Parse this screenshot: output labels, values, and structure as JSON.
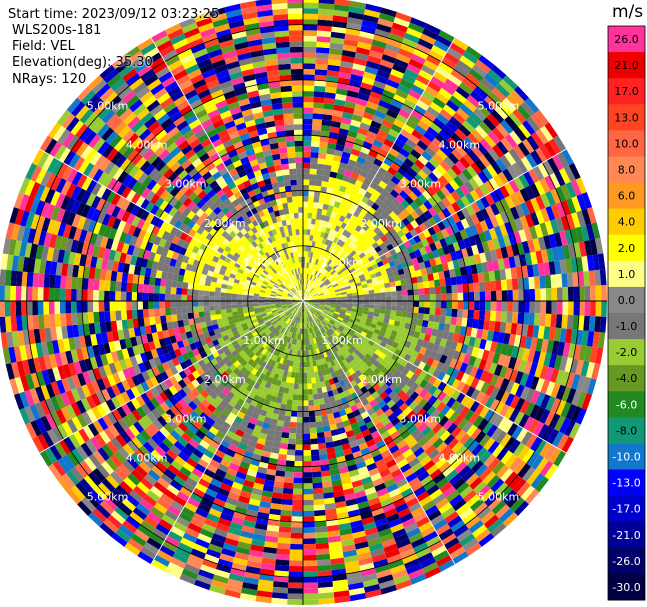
{
  "header": {
    "start_time": "Start time: 2023/09/12 03:23:25",
    "instrument": "WLS200s-181",
    "field": "Field: VEL",
    "elevation": "Elevation(deg): 35.30",
    "nrays": "NRays: 120"
  },
  "colorbar": {
    "unit": "m/s",
    "entries": [
      {
        "label": "26.0",
        "color": "#ff3399"
      },
      {
        "label": "21.0",
        "color": "#ee0000"
      },
      {
        "label": "17.0",
        "color": "#ff2222"
      },
      {
        "label": "13.0",
        "color": "#ff4422"
      },
      {
        "label": "10.0",
        "color": "#ff6644"
      },
      {
        "label": "8.0",
        "color": "#ff8855"
      },
      {
        "label": "6.0",
        "color": "#ff9922"
      },
      {
        "label": "4.0",
        "color": "#ffcc00"
      },
      {
        "label": "2.0",
        "color": "#ffff00"
      },
      {
        "label": "1.0",
        "color": "#ffff88"
      },
      {
        "label": "0.0",
        "color": "#888888"
      },
      {
        "label": "-1.0",
        "color": "#777777"
      },
      {
        "label": "-2.0",
        "color": "#99cc33"
      },
      {
        "label": "-4.0",
        "color": "#669922"
      },
      {
        "label": "-6.0",
        "color": "#228822"
      },
      {
        "label": "-8.0",
        "color": "#119977"
      },
      {
        "label": "-10.0",
        "color": "#1177cc"
      },
      {
        "label": "-13.0",
        "color": "#0000ff"
      },
      {
        "label": "-17.0",
        "color": "#0000cc"
      },
      {
        "label": "-21.0",
        "color": "#000099"
      },
      {
        "label": "-26.0",
        "color": "#000066"
      },
      {
        "label": "-30.0",
        "color": "#000044"
      }
    ]
  },
  "chart_data": {
    "type": "heatmap",
    "projection": "polar PPI",
    "field": "VEL",
    "elevation_deg": 35.3,
    "n_rays": 120,
    "range_unit": "km",
    "max_range_km": 5.5,
    "range_rings_km": [
      1.0,
      2.0,
      3.0,
      4.0,
      5.0
    ],
    "ring_labels": [
      "1.00km",
      "2.00km",
      "3.00km",
      "4.00km",
      "5.00km"
    ],
    "spoke_angles_deg": [
      0,
      30,
      60,
      90,
      120,
      150,
      180,
      210,
      240,
      270,
      300,
      330
    ],
    "value_range": [
      -30.0,
      30.0
    ],
    "regions": [
      {
        "description": "northern sector, inner ranges",
        "range_km": [
          0.0,
          2.0
        ],
        "azimuth_deg": [
          -80,
          80
        ],
        "velocity_ms": [
          1.0,
          2.0
        ]
      },
      {
        "description": "southern sector, inner ranges",
        "range_km": [
          0.0,
          2.0
        ],
        "azimuth_deg": [
          100,
          260
        ],
        "velocity_ms": [
          -4.0,
          -1.0
        ]
      },
      {
        "description": "near-zero belt",
        "range_km": [
          0.0,
          2.6
        ],
        "azimuth_deg": [
          0,
          360
        ],
        "velocity_ms": [
          -1.0,
          0.0
        ]
      },
      {
        "description": "outer noise",
        "range_km": [
          2.6,
          5.5
        ],
        "azimuth_deg": [
          0,
          360
        ],
        "velocity_ms": [
          -30.0,
          26.0
        ]
      }
    ]
  }
}
